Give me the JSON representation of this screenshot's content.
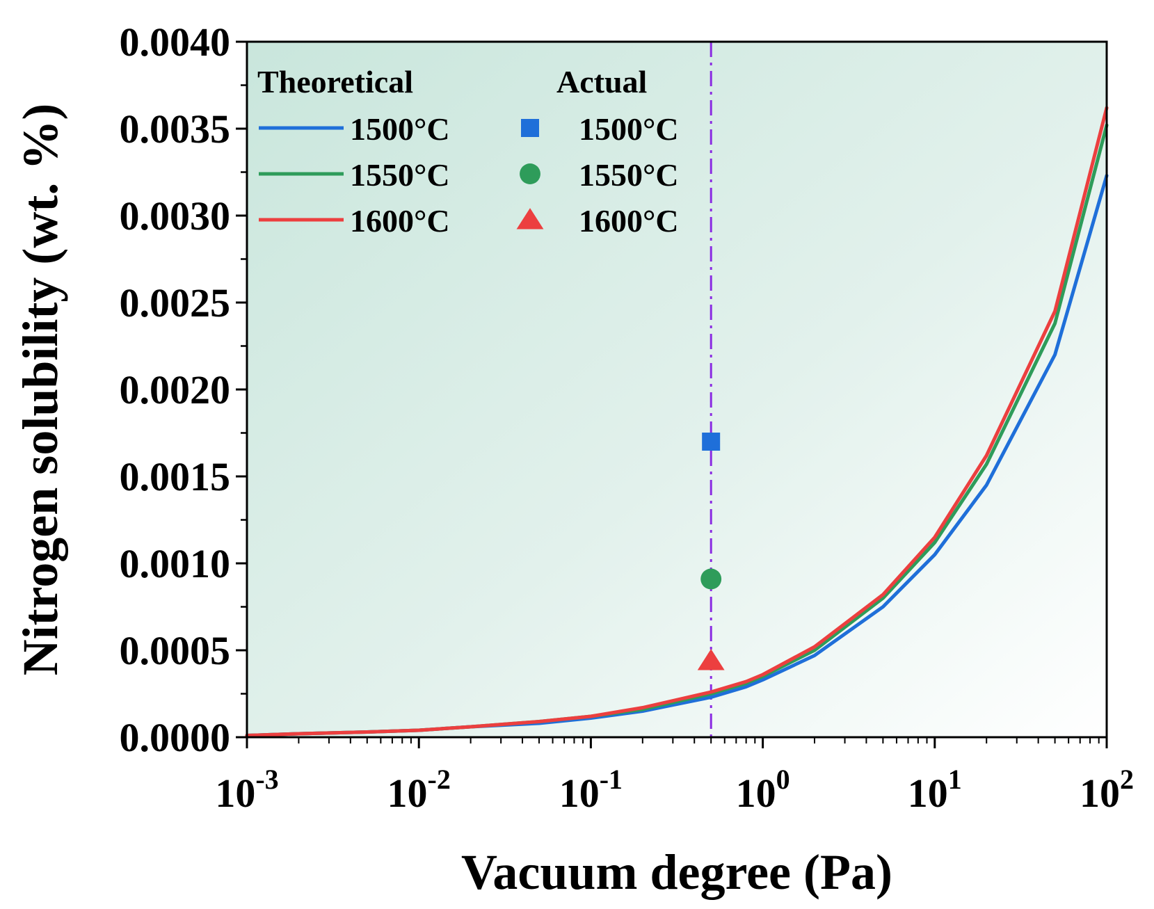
{
  "chart_data": {
    "type": "line",
    "xlabel": "Vacuum degree (Pa)",
    "ylabel": "Nitrogen solubility (wt. %)",
    "xscale": "log",
    "xlim": [
      0.001,
      100
    ],
    "ylim": [
      0,
      0.004
    ],
    "x_ticks": [
      {
        "base": "10",
        "exp": "-3",
        "value": 0.001
      },
      {
        "base": "10",
        "exp": "-2",
        "value": 0.01
      },
      {
        "base": "10",
        "exp": "-1",
        "value": 0.1
      },
      {
        "base": "10",
        "exp": "0",
        "value": 1
      },
      {
        "base": "10",
        "exp": "1",
        "value": 10
      },
      {
        "base": "10",
        "exp": "2",
        "value": 100
      }
    ],
    "y_ticks": [
      {
        "label": "0.0000",
        "value": 0
      },
      {
        "label": "0.0005",
        "value": 0.0005
      },
      {
        "label": "0.0010",
        "value": 0.001
      },
      {
        "label": "0.0015",
        "value": 0.0015
      },
      {
        "label": "0.0020",
        "value": 0.002
      },
      {
        "label": "0.0025",
        "value": 0.0025
      },
      {
        "label": "0.0030",
        "value": 0.003
      },
      {
        "label": "0.0035",
        "value": 0.0035
      },
      {
        "label": "0.0040",
        "value": 0.004
      }
    ],
    "legend_headers": {
      "theoretical": "Theoretical",
      "actual": "Actual"
    },
    "legend_position": "top-left",
    "reference_line": {
      "x": 0.5,
      "color": "#8a2be2",
      "style": "dash-dot"
    },
    "x": [
      0.001,
      0.002,
      0.005,
      0.01,
      0.02,
      0.05,
      0.1,
      0.2,
      0.5,
      0.8,
      1,
      2,
      5,
      10,
      20,
      50,
      100
    ],
    "series": [
      {
        "name": "1500°C",
        "kind": "theoretical",
        "color": "#1f6fd9",
        "values": [
          1e-05,
          2e-05,
          3e-05,
          4e-05,
          6e-05,
          8e-05,
          0.00011,
          0.00015,
          0.00023,
          0.00029,
          0.00033,
          0.00047,
          0.00075,
          0.00105,
          0.00145,
          0.0022,
          0.00323
        ]
      },
      {
        "name": "1550°C",
        "kind": "theoretical",
        "color": "#2e9c5a",
        "values": [
          1e-05,
          2e-05,
          3e-05,
          4e-05,
          6e-05,
          9e-05,
          0.00012,
          0.00016,
          0.00025,
          0.00031,
          0.00035,
          0.0005,
          0.0008,
          0.00112,
          0.00157,
          0.00238,
          0.00352
        ]
      },
      {
        "name": "1600°C",
        "kind": "theoretical",
        "color": "#ec3f3f",
        "values": [
          1e-05,
          2e-05,
          3e-05,
          4e-05,
          6e-05,
          9e-05,
          0.00012,
          0.00017,
          0.00026,
          0.00032,
          0.00036,
          0.00052,
          0.00082,
          0.00115,
          0.00162,
          0.00245,
          0.00362
        ]
      }
    ],
    "actual_points": [
      {
        "name": "1500°C",
        "marker": "square",
        "color": "#1f6fd9",
        "x": 0.5,
        "y": 0.0017
      },
      {
        "name": "1550°C",
        "marker": "circle",
        "color": "#2e9c5a",
        "x": 0.5,
        "y": 0.00091
      },
      {
        "name": "1600°C",
        "marker": "triangle",
        "color": "#ec3f3f",
        "x": 0.5,
        "y": 0.00044
      }
    ]
  }
}
